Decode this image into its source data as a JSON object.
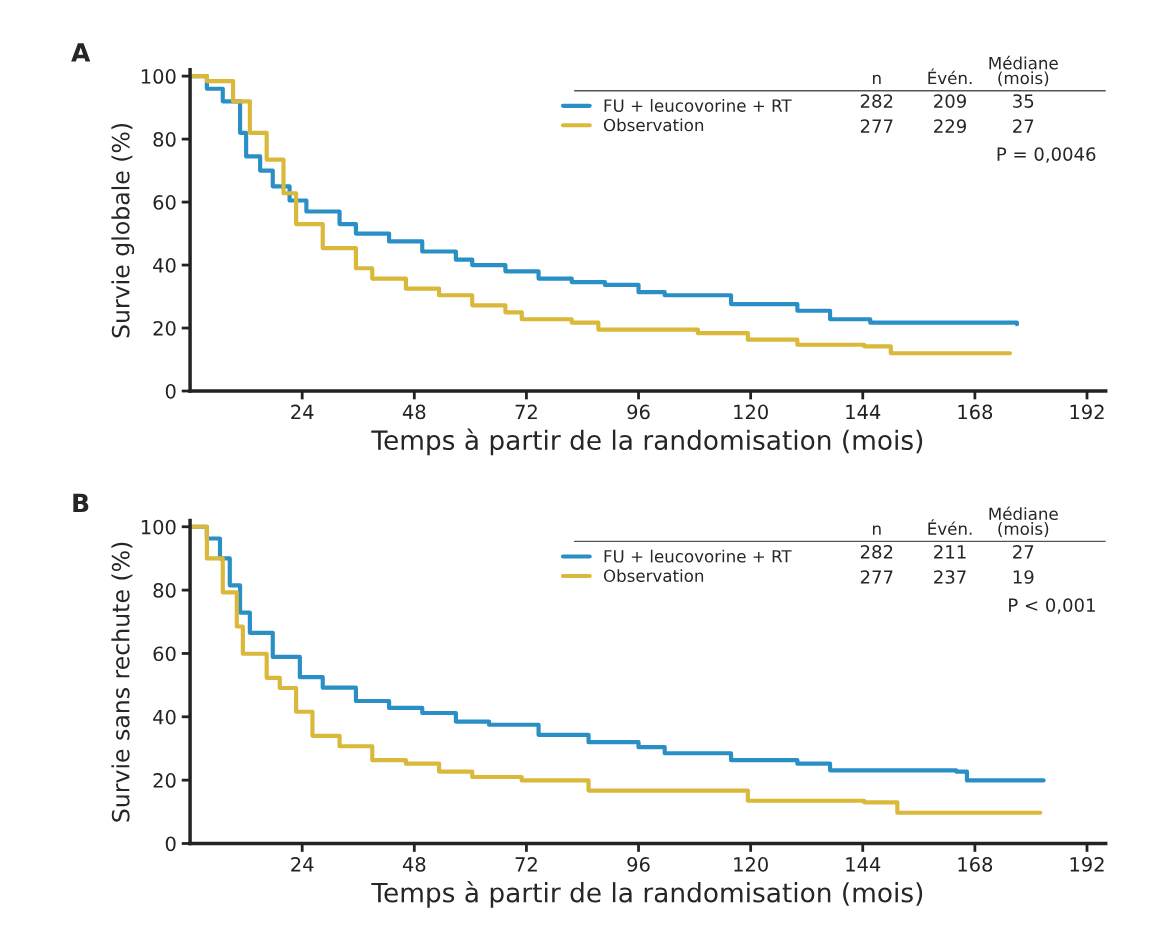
{
  "chart_data": [
    {
      "type": "step",
      "title": "A",
      "xlabel": "Temps à partir de la randomisation (mois)",
      "ylabel": "Survie globale (%)",
      "xlim": [
        0,
        196
      ],
      "xticks": [
        24,
        48,
        72,
        96,
        120,
        144,
        168,
        192
      ],
      "ylim": [
        0,
        102
      ],
      "yticks": [
        0,
        20,
        40,
        60,
        80,
        100
      ],
      "legend": "top right",
      "grid": false,
      "annotations": [
        "n",
        "Évén.",
        "Médiane\n(mois)",
        "282",
        "209",
        "35",
        "277",
        "229",
        "27",
        "P = 0,0046"
      ],
      "series": [
        {
          "name": "FU + leucovorine + RT",
          "color": "#2a8fc4",
          "x": [
            0,
            3.6,
            7,
            10.7,
            12,
            15,
            17.7,
            21.3,
            24.9,
            32,
            35.5,
            42.6,
            49.7,
            56.9,
            60.4,
            67.5,
            74.6,
            81.7,
            88.8,
            96,
            101.6,
            115.8,
            130,
            137,
            145.6,
            177
          ],
          "values": [
            100,
            96,
            92,
            82,
            74.5,
            70,
            65,
            60.5,
            57,
            53,
            50,
            47.5,
            44.3,
            41.7,
            40,
            38,
            35.7,
            34.6,
            33.7,
            31.4,
            30.4,
            27.6,
            25.5,
            22.8,
            21.7,
            21.2
          ]
        },
        {
          "name": "Observation",
          "color": "#d9b83a",
          "x": [
            0,
            3.6,
            9.2,
            12.8,
            16.4,
            20,
            22.7,
            28.4,
            35.5,
            39,
            46.2,
            53.3,
            60.4,
            67.5,
            71,
            81.7,
            87.4,
            96,
            101.6,
            108.7,
            119.4,
            130,
            144.3,
            150,
            175.5
          ],
          "values": [
            100,
            98.4,
            92,
            82,
            73.5,
            62.8,
            53,
            45.4,
            39,
            35.7,
            32.5,
            30.4,
            27.2,
            25,
            22.8,
            21.7,
            19.5,
            19.5,
            19.5,
            18.4,
            16.3,
            14.7,
            14.2,
            12,
            12
          ]
        }
      ]
    },
    {
      "type": "step",
      "title": "B",
      "xlabel": "Temps à partir de la randomisation (mois)",
      "ylabel": "Survie sans rechute (%)",
      "xlim": [
        0,
        196
      ],
      "xticks": [
        24,
        48,
        72,
        96,
        120,
        144,
        168,
        192
      ],
      "ylim": [
        0,
        102
      ],
      "yticks": [
        0,
        20,
        40,
        60,
        80,
        100
      ],
      "legend": "top right",
      "grid": false,
      "annotations": [
        "n",
        "Évén.",
        "Médiane\n(mois)",
        "282",
        "211",
        "27",
        "277",
        "237",
        "19",
        "P < 0,001"
      ],
      "series": [
        {
          "name": "FU + leucovorine + RT",
          "color": "#2a8fc4",
          "x": [
            0,
            3.6,
            6.4,
            8.5,
            10.7,
            12.8,
            17.7,
            23.5,
            28.4,
            35.5,
            42.6,
            49.7,
            56.9,
            64,
            74.6,
            85.3,
            96,
            101.6,
            115.8,
            130,
            137,
            164,
            166.3,
            182.7
          ],
          "values": [
            100,
            96.3,
            90,
            81.5,
            72.9,
            66.5,
            58.9,
            52.5,
            49.2,
            45,
            42.8,
            41.2,
            38.5,
            37.5,
            34.3,
            32,
            30.4,
            28.5,
            26.3,
            25.2,
            23.1,
            22.7,
            19.9,
            19.9
          ]
        },
        {
          "name": "Observation",
          "color": "#d9b83a",
          "x": [
            0,
            3.6,
            7,
            10,
            11.3,
            16.4,
            19.2,
            22.7,
            26.2,
            32,
            39,
            46.2,
            53.3,
            60.4,
            71,
            85.3,
            96,
            101.6,
            119.4,
            144.3,
            151.4,
            182
          ],
          "values": [
            100,
            90,
            79.3,
            68.5,
            59.9,
            52.3,
            49.1,
            41.6,
            34,
            30.7,
            26.3,
            25.2,
            22.7,
            21,
            19.9,
            16.7,
            16.7,
            16.7,
            13.5,
            13,
            9.7,
            9.7
          ]
        }
      ]
    }
  ]
}
